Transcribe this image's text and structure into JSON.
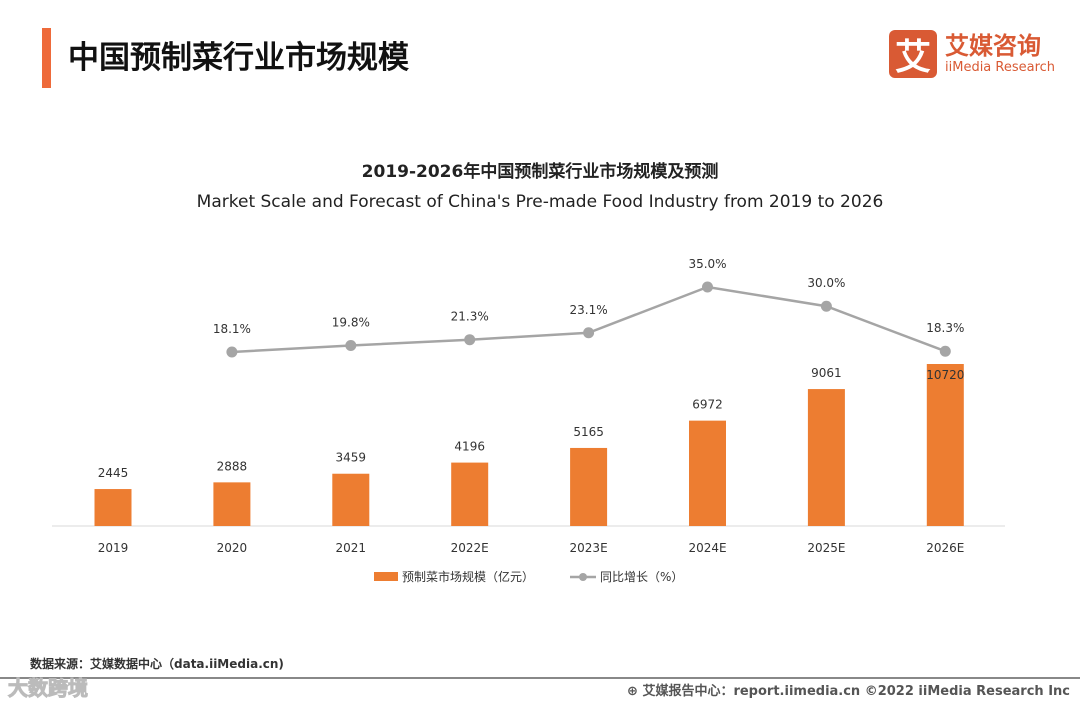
{
  "header": {
    "title": "中国预制菜行业市场规模",
    "logo_mark": "艾",
    "logo_cn": "艾媒咨询",
    "logo_en": "iiMedia Research"
  },
  "chart_data": {
    "type": "bar+line",
    "title": "2019-2026年中国预制菜行业市场规模及预测",
    "subtitle": "Market Scale and Forecast of China's Pre-made Food Industry from 2019 to 2026",
    "categories": [
      "2019",
      "2020",
      "2021",
      "2022E",
      "2023E",
      "2024E",
      "2025E",
      "2026E"
    ],
    "series": [
      {
        "name": "预制菜市场规模（亿元）",
        "type": "bar",
        "color": "#ed7d31",
        "values": [
          2445,
          2888,
          3459,
          4196,
          5165,
          6972,
          9061,
          10720
        ],
        "labels": [
          "2445",
          "2888",
          "3459",
          "4196",
          "5165",
          "6972",
          "9061",
          "10720"
        ]
      },
      {
        "name": "同比增长（%）",
        "type": "line",
        "color": "#a5a5a5",
        "values": [
          null,
          18.1,
          19.8,
          21.3,
          23.1,
          35.0,
          30.0,
          18.3
        ],
        "labels": [
          "",
          "18.1%",
          "19.8%",
          "21.3%",
          "23.1%",
          "35.0%",
          "30.0%",
          "18.3%"
        ]
      }
    ],
    "legend": "bottom"
  },
  "footer": {
    "source": "数据来源：艾媒数据中心（data.iiMedia.cn)",
    "report": "艾媒报告中心：report.iimedia.cn   ©2022  iiMedia Research  Inc",
    "watermark": "大数跨境"
  }
}
